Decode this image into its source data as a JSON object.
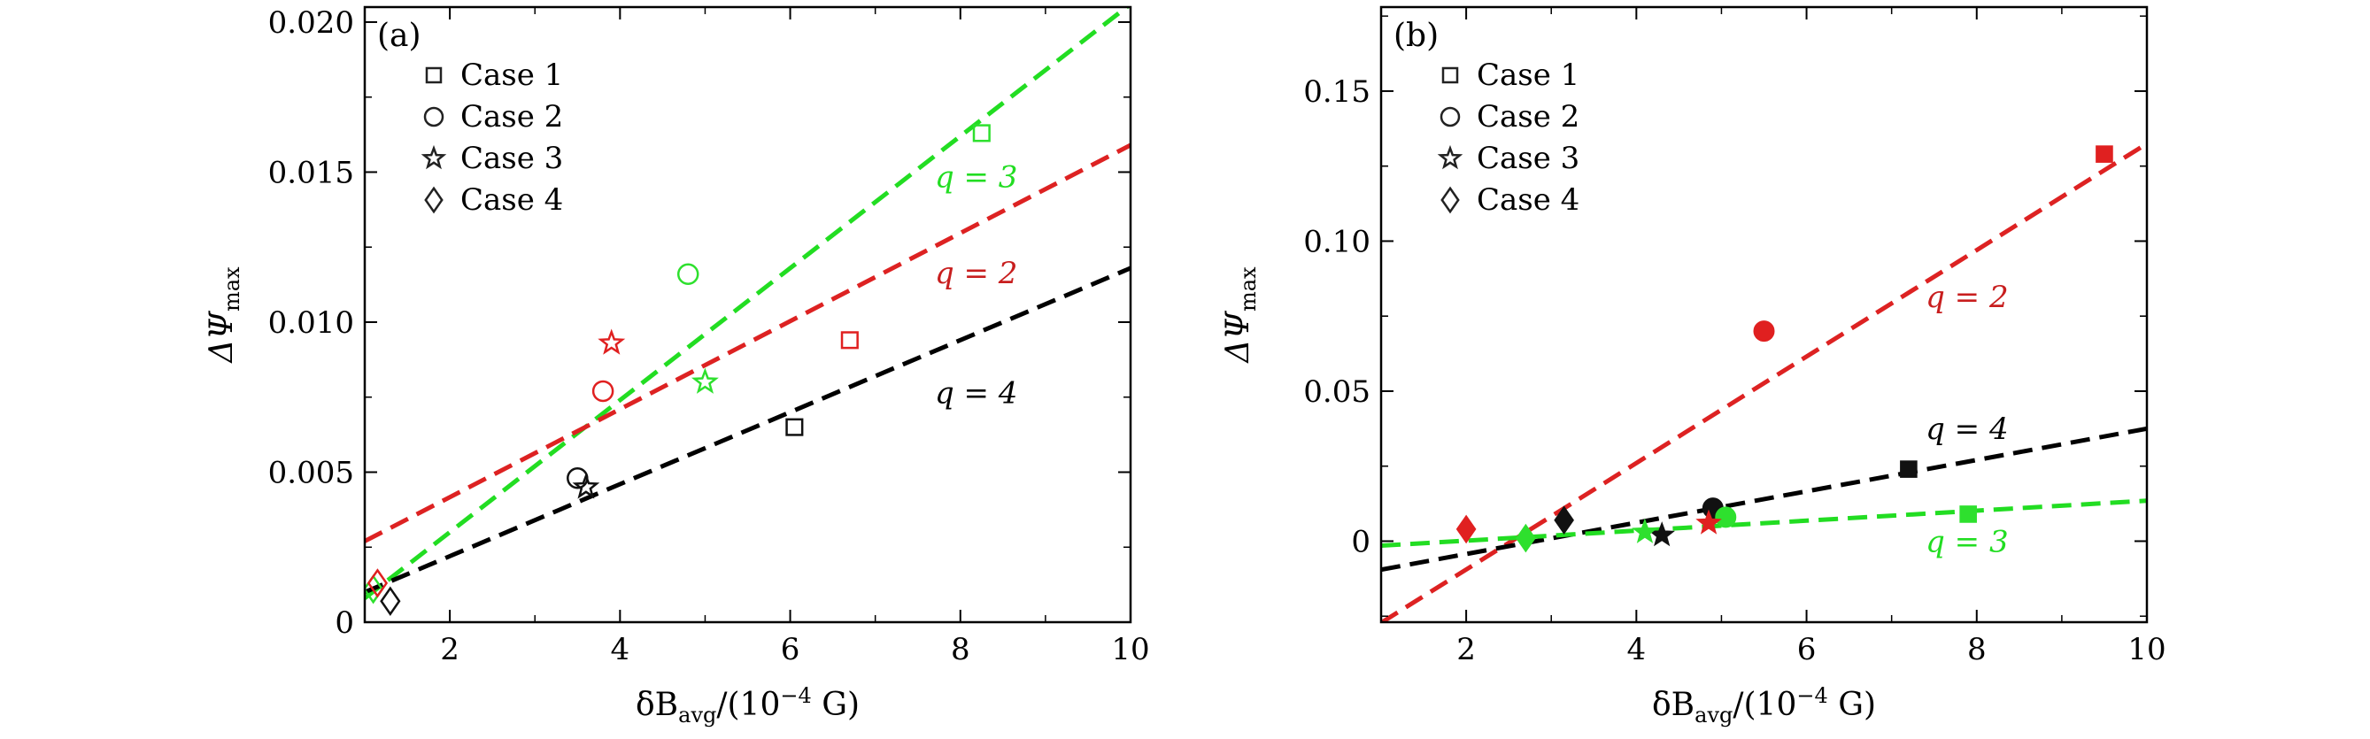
{
  "chart_data": [
    {
      "type": "scatter",
      "panel": "(a)",
      "xlabel": "δB_avg/(10^-4 G)",
      "xlabel_main": "δB",
      "xlabel_sub": "avg",
      "xlabel_rest": "/(10",
      "xlabel_exp": "−4",
      "xlabel_end": " G)",
      "ylabel_main": "ΔΨ",
      "ylabel_sub": "max",
      "xlim": [
        1,
        10
      ],
      "ylim": [
        0,
        0.0205
      ],
      "xticks": [
        2,
        4,
        6,
        8,
        10
      ],
      "xtick_labels": [
        "2",
        "4",
        "6",
        "8",
        "10"
      ],
      "yticks": [
        0,
        0.005,
        0.01,
        0.015,
        0.02
      ],
      "ytick_labels": [
        "0",
        "0.005",
        "0.010",
        "0.015",
        "0.020"
      ],
      "marker_fill": "open",
      "legend": [
        {
          "label": "Case 1",
          "marker": "square"
        },
        {
          "label": "Case 2",
          "marker": "circle"
        },
        {
          "label": "Case 3",
          "marker": "star"
        },
        {
          "label": "Case 4",
          "marker": "diamond"
        }
      ],
      "fits": [
        {
          "q": 3,
          "label": "q = 3",
          "color": "#22dd22",
          "x": [
            1.0,
            10.0
          ],
          "y": [
            0.0008,
            0.0206
          ],
          "label_at": [
            7.7,
            0.0145
          ]
        },
        {
          "q": 2,
          "label": "q = 2",
          "color": "#dd2222",
          "x": [
            1.0,
            10.0
          ],
          "y": [
            0.0027,
            0.0159
          ],
          "label_at": [
            7.7,
            0.0113
          ]
        },
        {
          "q": 4,
          "label": "q = 4",
          "color": "#000000",
          "x": [
            1.0,
            10.0
          ],
          "y": [
            0.001,
            0.0118
          ],
          "label_at": [
            7.7,
            0.0073
          ]
        }
      ],
      "points": [
        {
          "case": 1,
          "q": 3,
          "x": 8.25,
          "y": 0.0163
        },
        {
          "case": 1,
          "q": 2,
          "x": 6.7,
          "y": 0.0094
        },
        {
          "case": 1,
          "q": 4,
          "x": 6.05,
          "y": 0.0065
        },
        {
          "case": 2,
          "q": 3,
          "x": 4.8,
          "y": 0.0116
        },
        {
          "case": 2,
          "q": 2,
          "x": 3.8,
          "y": 0.0077
        },
        {
          "case": 2,
          "q": 4,
          "x": 3.5,
          "y": 0.0048
        },
        {
          "case": 3,
          "q": 2,
          "x": 3.9,
          "y": 0.0093
        },
        {
          "case": 3,
          "q": 3,
          "x": 5.0,
          "y": 0.008
        },
        {
          "case": 3,
          "q": 4,
          "x": 3.6,
          "y": 0.0045
        },
        {
          "case": 4,
          "q": 3,
          "x": 1.1,
          "y": 0.0011
        },
        {
          "case": 4,
          "q": 2,
          "x": 1.15,
          "y": 0.0013
        },
        {
          "case": 4,
          "q": 4,
          "x": 1.3,
          "y": 0.0007
        }
      ]
    },
    {
      "type": "scatter",
      "panel": "(b)",
      "xlabel": "δB_avg/(10^-4 G)",
      "xlabel_main": "δB",
      "xlabel_sub": "avg",
      "xlabel_rest": "/(10",
      "xlabel_exp": "−4",
      "xlabel_end": " G)",
      "ylabel_main": "ΔΨ",
      "ylabel_sub": "max",
      "xlim": [
        1,
        10
      ],
      "ylim": [
        -0.027,
        0.178
      ],
      "xticks": [
        2,
        4,
        6,
        8,
        10
      ],
      "xtick_labels": [
        "2",
        "4",
        "6",
        "8",
        "10"
      ],
      "yticks": [
        0,
        0.05,
        0.1,
        0.15
      ],
      "ytick_labels": [
        "0",
        "0.05",
        "0.10",
        "0.15"
      ],
      "marker_fill": "filled",
      "legend": [
        {
          "label": "Case 1",
          "marker": "square"
        },
        {
          "label": "Case 2",
          "marker": "circle"
        },
        {
          "label": "Case 3",
          "marker": "star"
        },
        {
          "label": "Case 4",
          "marker": "diamond"
        }
      ],
      "fits": [
        {
          "q": 2,
          "label": "q = 2",
          "color": "#dd2222",
          "x": [
            1.0,
            10.0
          ],
          "y": [
            -0.0272,
            0.1325
          ],
          "label_at": [
            7.4,
            0.078
          ]
        },
        {
          "q": 4,
          "label": "q = 4",
          "color": "#000000",
          "x": [
            1.0,
            10.0
          ],
          "y": [
            -0.0095,
            0.0375
          ],
          "label_at": [
            7.4,
            0.034
          ]
        },
        {
          "q": 3,
          "label": "q = 3",
          "color": "#22dd22",
          "x": [
            1.0,
            10.0
          ],
          "y": [
            -0.0015,
            0.0135
          ],
          "label_at": [
            7.4,
            -0.0035
          ]
        }
      ],
      "points": [
        {
          "case": 1,
          "q": 2,
          "x": 9.5,
          "y": 0.129
        },
        {
          "case": 1,
          "q": 4,
          "x": 7.2,
          "y": 0.024
        },
        {
          "case": 1,
          "q": 3,
          "x": 7.9,
          "y": 0.009
        },
        {
          "case": 2,
          "q": 2,
          "x": 5.5,
          "y": 0.07
        },
        {
          "case": 2,
          "q": 4,
          "x": 4.9,
          "y": 0.011
        },
        {
          "case": 2,
          "q": 3,
          "x": 5.05,
          "y": 0.008
        },
        {
          "case": 3,
          "q": 4,
          "x": 4.3,
          "y": 0.002
        },
        {
          "case": 3,
          "q": 2,
          "x": 4.85,
          "y": 0.006
        },
        {
          "case": 3,
          "q": 3,
          "x": 4.1,
          "y": 0.003
        },
        {
          "case": 4,
          "q": 2,
          "x": 2.0,
          "y": 0.004
        },
        {
          "case": 4,
          "q": 4,
          "x": 3.15,
          "y": 0.007
        },
        {
          "case": 4,
          "q": 3,
          "x": 2.7,
          "y": 0.001
        }
      ]
    }
  ]
}
